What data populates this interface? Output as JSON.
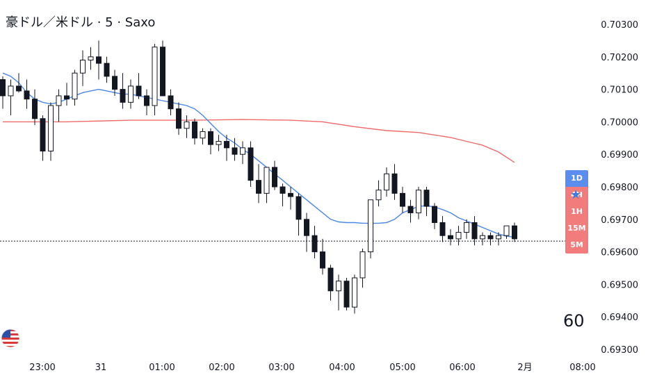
{
  "header": {
    "title": "豪ドル／米ドル · 5 · Saxo"
  },
  "timeframes": [
    "1D",
    "4H",
    "1H",
    "15M",
    "5M"
  ],
  "icons": {
    "star": "star-icon",
    "flag": "us-flag-icon"
  },
  "watermark": {
    "text": "60"
  },
  "colors": {
    "candle_up_fill": "#ffffff",
    "candle_down_fill": "#131722",
    "ma_fast": "#4a86e8",
    "ma_slow": "#f06a6a",
    "tf_active": "#5b8def",
    "tf_inactive": "#f27c7c"
  },
  "chart_data": {
    "type": "candlestick",
    "title": "豪ドル／米ドル · 5 · Saxo",
    "y_ticks": [
      "0.70300",
      "0.70200",
      "0.70100",
      "0.70000",
      "0.69900",
      "0.69800",
      "0.69700",
      "0.69600",
      "0.69500",
      "0.69400",
      "0.69300"
    ],
    "x_ticks": [
      "23:00",
      "31",
      "01:00",
      "02:00",
      "03:00",
      "04:00",
      "05:00",
      "06:00",
      "2月",
      "08:00"
    ],
    "ylim": [
      0.693,
      0.703
    ],
    "current_price_line": 0.69633,
    "series": [
      {
        "name": "",
        "kind": "ma",
        "color": "#4a86e8",
        "points": [
          [
            0,
            0.7015
          ],
          [
            1,
            0.7014
          ],
          [
            2,
            0.7012
          ],
          [
            3,
            0.7009
          ],
          [
            4,
            0.7007
          ],
          [
            5,
            0.7006
          ],
          [
            6,
            0.70055
          ],
          [
            7,
            0.7006
          ],
          [
            8,
            0.7007
          ],
          [
            9,
            0.7008
          ],
          [
            10,
            0.7009
          ],
          [
            11,
            0.70095
          ],
          [
            12,
            0.701
          ],
          [
            13,
            0.70095
          ],
          [
            14,
            0.7009
          ],
          [
            15,
            0.70085
          ],
          [
            16,
            0.70085
          ],
          [
            17,
            0.7008
          ],
          [
            18,
            0.70075
          ],
          [
            19,
            0.7007
          ],
          [
            20,
            0.70065
          ],
          [
            21,
            0.7006
          ],
          [
            22,
            0.70055
          ],
          [
            23,
            0.7005
          ],
          [
            24,
            0.7004
          ],
          [
            25,
            0.7002
          ],
          [
            26,
            0.69995
          ],
          [
            27,
            0.6997
          ],
          [
            28,
            0.6995
          ],
          [
            29,
            0.69935
          ],
          [
            30,
            0.69915
          ],
          [
            31,
            0.699
          ],
          [
            32,
            0.6988
          ],
          [
            33,
            0.6986
          ],
          [
            34,
            0.6984
          ],
          [
            35,
            0.6982
          ],
          [
            36,
            0.698
          ],
          [
            37,
            0.6978
          ],
          [
            38,
            0.6976
          ],
          [
            39,
            0.6974
          ],
          [
            40,
            0.6972
          ],
          [
            41,
            0.697
          ],
          [
            42,
            0.69692
          ],
          [
            43,
            0.6969
          ],
          [
            44,
            0.6969
          ],
          [
            45,
            0.69688
          ],
          [
            46,
            0.69688
          ],
          [
            47,
            0.69688
          ],
          [
            48,
            0.6969
          ],
          [
            49,
            0.697
          ],
          [
            50,
            0.6972
          ],
          [
            51,
            0.6973
          ],
          [
            52,
            0.6974
          ],
          [
            53,
            0.69742
          ],
          [
            54,
            0.69738
          ],
          [
            55,
            0.6973
          ],
          [
            56,
            0.6972
          ],
          [
            57,
            0.69705
          ],
          [
            58,
            0.69695
          ],
          [
            59,
            0.69685
          ],
          [
            60,
            0.69675
          ],
          [
            61,
            0.69665
          ],
          [
            62,
            0.69655
          ],
          [
            63,
            0.69648
          ],
          [
            64,
            0.69645
          ]
        ]
      },
      {
        "name": "",
        "kind": "ma",
        "color": "#f06a6a",
        "points": [
          [
            0,
            0.7
          ],
          [
            8,
            0.7
          ],
          [
            16,
            0.70005
          ],
          [
            24,
            0.70005
          ],
          [
            30,
            0.70007
          ],
          [
            36,
            0.70005
          ],
          [
            40,
            0.7
          ],
          [
            44,
            0.69985
          ],
          [
            48,
            0.69973
          ],
          [
            52,
            0.69967
          ],
          [
            56,
            0.69952
          ],
          [
            58,
            0.6994
          ],
          [
            60,
            0.69928
          ],
          [
            62,
            0.69907
          ],
          [
            64,
            0.69875
          ]
        ]
      },
      {
        "name": "",
        "kind": "candles",
        "bars": [
          [
            0.7013,
            0.7014,
            0.7004,
            0.7008
          ],
          [
            0.7008,
            0.7013,
            0.7002,
            0.7011
          ],
          [
            0.7011,
            0.7015,
            0.7009,
            0.70095
          ],
          [
            0.70095,
            0.7013,
            0.7004,
            0.7007
          ],
          [
            0.7007,
            0.701,
            0.6999,
            0.7001
          ],
          [
            0.7001,
            0.7002,
            0.6988,
            0.6991
          ],
          [
            0.6991,
            0.7006,
            0.6988,
            0.7005
          ],
          [
            0.7005,
            0.701,
            0.7,
            0.7008
          ],
          [
            0.7008,
            0.7012,
            0.7005,
            0.7007
          ],
          [
            0.7007,
            0.7016,
            0.7005,
            0.7015
          ],
          [
            0.7015,
            0.7022,
            0.7011,
            0.7019
          ],
          [
            0.7019,
            0.7023,
            0.7016,
            0.702
          ],
          [
            0.702,
            0.7025,
            0.7013,
            0.7018
          ],
          [
            0.7018,
            0.702,
            0.7012,
            0.7014
          ],
          [
            0.7014,
            0.7016,
            0.7008,
            0.701
          ],
          [
            0.701,
            0.7015,
            0.7004,
            0.7006
          ],
          [
            0.7006,
            0.7013,
            0.7004,
            0.7011
          ],
          [
            0.7011,
            0.7015,
            0.7007,
            0.7008
          ],
          [
            0.7008,
            0.701,
            0.7002,
            0.7005
          ],
          [
            0.7005,
            0.7024,
            0.7002,
            0.7023
          ],
          [
            0.7023,
            0.7025,
            0.701,
            0.7008
          ],
          [
            0.7008,
            0.701,
            0.7002,
            0.7004
          ],
          [
            0.7004,
            0.7006,
            0.6996,
            0.6998
          ],
          [
            0.6998,
            0.7002,
            0.6995,
            0.7
          ],
          [
            0.7,
            0.7001,
            0.6993,
            0.6995
          ],
          [
            0.6995,
            0.6998,
            0.6993,
            0.6997
          ],
          [
            0.6997,
            0.6998,
            0.699,
            0.6993
          ],
          [
            0.6993,
            0.6996,
            0.6991,
            0.6994
          ],
          [
            0.6994,
            0.6996,
            0.6988,
            0.6992
          ],
          [
            0.6992,
            0.6995,
            0.6988,
            0.699
          ],
          [
            0.699,
            0.6994,
            0.6987,
            0.6992
          ],
          [
            0.6992,
            0.6994,
            0.698,
            0.6982
          ],
          [
            0.6982,
            0.6987,
            0.6975,
            0.6978
          ],
          [
            0.6978,
            0.6984,
            0.6975,
            0.6986
          ],
          [
            0.6986,
            0.6988,
            0.6979,
            0.698
          ],
          [
            0.698,
            0.6981,
            0.6974,
            0.6978
          ],
          [
            0.6978,
            0.698,
            0.6973,
            0.6977
          ],
          [
            0.6977,
            0.6978,
            0.6965,
            0.697
          ],
          [
            0.697,
            0.6972,
            0.696,
            0.6965
          ],
          [
            0.6965,
            0.6968,
            0.6958,
            0.696
          ],
          [
            0.696,
            0.6964,
            0.6953,
            0.6955
          ],
          [
            0.6955,
            0.6956,
            0.6945,
            0.6948
          ],
          [
            0.6948,
            0.6953,
            0.6942,
            0.6951
          ],
          [
            0.6951,
            0.6952,
            0.6942,
            0.6943
          ],
          [
            0.6943,
            0.6953,
            0.6941,
            0.6952
          ],
          [
            0.6952,
            0.6961,
            0.6949,
            0.696
          ],
          [
            0.696,
            0.6976,
            0.6958,
            0.6976
          ],
          [
            0.6976,
            0.6982,
            0.6974,
            0.6979
          ],
          [
            0.6979,
            0.6986,
            0.6977,
            0.6984
          ],
          [
            0.6984,
            0.6987,
            0.6976,
            0.6978
          ],
          [
            0.6978,
            0.698,
            0.6972,
            0.6974
          ],
          [
            0.6974,
            0.6976,
            0.6969,
            0.6972
          ],
          [
            0.6972,
            0.698,
            0.697,
            0.6979
          ],
          [
            0.6979,
            0.698,
            0.6971,
            0.6974
          ],
          [
            0.6974,
            0.6975,
            0.6967,
            0.6969
          ],
          [
            0.6969,
            0.6971,
            0.6963,
            0.6965
          ],
          [
            0.6965,
            0.6967,
            0.6962,
            0.6964
          ],
          [
            0.6964,
            0.6968,
            0.6962,
            0.6966
          ],
          [
            0.6966,
            0.697,
            0.6964,
            0.6969
          ],
          [
            0.6969,
            0.6971,
            0.6962,
            0.6964
          ],
          [
            0.6964,
            0.6966,
            0.6962,
            0.6965
          ],
          [
            0.6965,
            0.6966,
            0.6962,
            0.6964
          ],
          [
            0.6964,
            0.6966,
            0.6962,
            0.6965
          ],
          [
            0.6965,
            0.6968,
            0.6964,
            0.6968
          ],
          [
            0.6968,
            0.6969,
            0.6963,
            0.6964
          ]
        ]
      }
    ]
  }
}
